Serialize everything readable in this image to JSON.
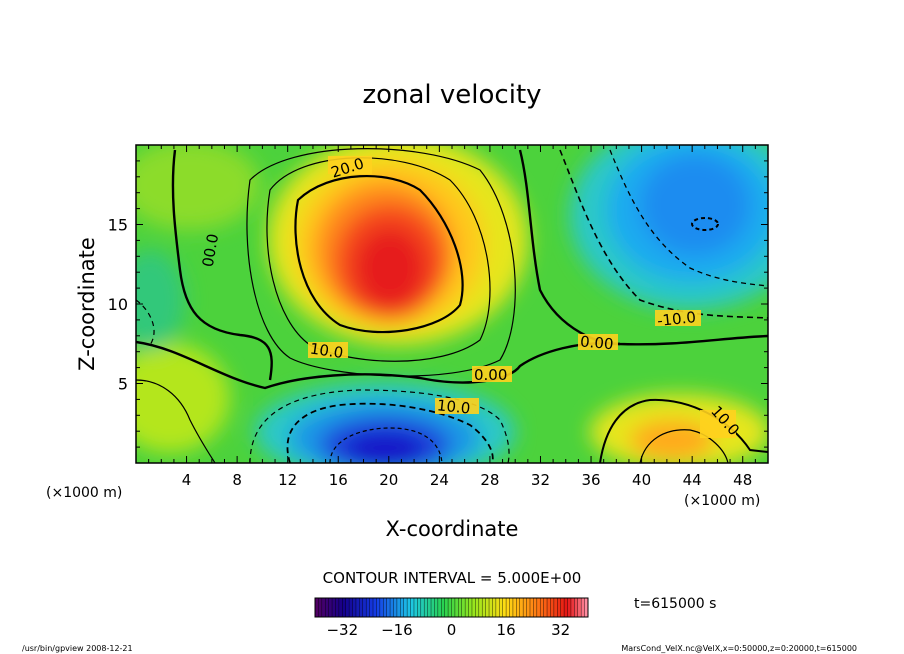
{
  "chart_data": {
    "type": "heatmap",
    "title": "zonal velocity",
    "xlabel": "X-coordinate",
    "ylabel": "Z-coordinate",
    "x_unit_left": "(×1000 m)",
    "x_unit_right": "(×1000 m)",
    "xlim": [
      0,
      50
    ],
    "ylim": [
      0,
      20
    ],
    "x_ticks": [
      4,
      8,
      12,
      16,
      20,
      24,
      28,
      32,
      36,
      40,
      44,
      48
    ],
    "y_ticks": [
      5,
      10,
      15
    ],
    "contour_interval_text": "CONTOUR INTERVAL = 5.000E+00",
    "contour_labels": [
      "20.0",
      "00.0",
      "10.0",
      "0.00",
      "0.00",
      "-10.0",
      "10.0",
      "10.0"
    ],
    "colorbar": {
      "range": [
        -40,
        40
      ],
      "ticks": [
        -32,
        -16,
        0,
        16,
        32
      ],
      "colormap": "rainbow"
    },
    "time_label": "t=615000 s",
    "features": [
      {
        "x": 20,
        "z": 12.5,
        "value": 32
      },
      {
        "x": 20,
        "z": 1.5,
        "value": -30
      },
      {
        "x": 45,
        "z": 15,
        "value": -18
      },
      {
        "x": 43,
        "z": 1.5,
        "value": 18
      },
      {
        "x": 45,
        "z": 6,
        "value": 3
      }
    ]
  },
  "footer": {
    "left": "/usr/bin/gpview   2008-12-21",
    "right": "MarsCond_VelX.nc@VelX,x=0:50000,z=0:20000,t=615000"
  }
}
